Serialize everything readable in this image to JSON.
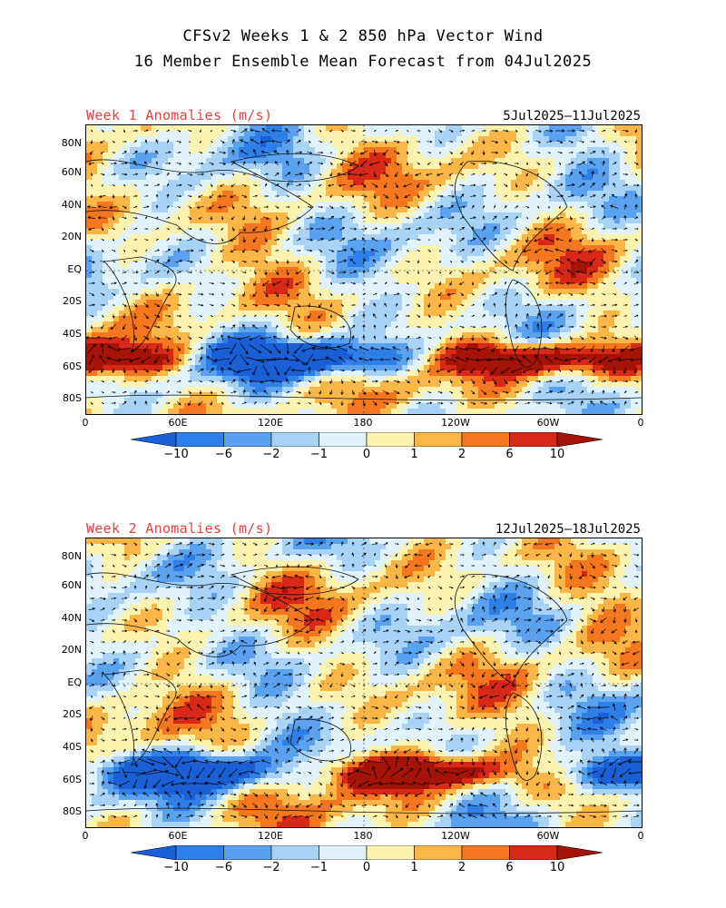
{
  "title_line1": "CFSv2 Weeks 1 & 2 850 hPa Vector Wind",
  "title_line2": "16 Member Ensemble Mean Forecast from 04Jul2025",
  "panels": [
    {
      "label": "Week 1 Anomalies (m/s)",
      "dates": "5Jul2025–11Jul2025"
    },
    {
      "label": "Week 2 Anomalies (m/s)",
      "dates": "12Jul2025–18Jul2025"
    }
  ],
  "lat_labels": [
    "80N",
    "60N",
    "40N",
    "20N",
    "EQ",
    "20S",
    "40S",
    "60S",
    "80S"
  ],
  "lon_labels": [
    "0",
    "60E",
    "120E",
    "180",
    "120W",
    "60W",
    "0"
  ],
  "colorbar": {
    "labels": [
      "−10",
      "−6",
      "−2",
      "−1",
      "0",
      "1",
      "2",
      "6",
      "10"
    ],
    "colors": [
      "#1a5fd6",
      "#2f7fe8",
      "#5aa2ef",
      "#a8d2f6",
      "#e0f3fb",
      "#fdf3b0",
      "#fbb648",
      "#f4761e",
      "#d72818",
      "#a51208"
    ]
  }
}
